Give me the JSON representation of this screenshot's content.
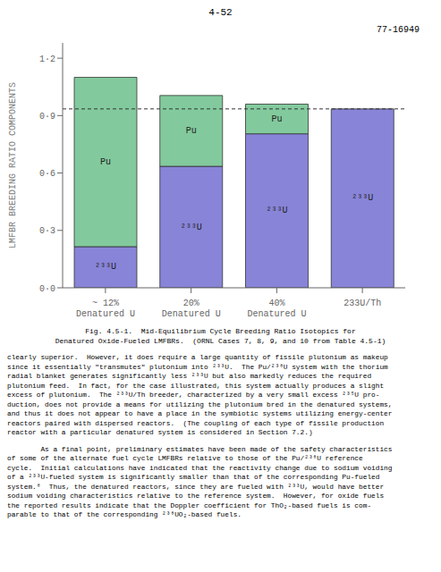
{
  "chart_data": {
    "type": "bar",
    "stacked": true,
    "grid": false,
    "title": "77-16949",
    "page_header": "4-52",
    "ylabel": "LMFBR BREEDING RATIO COMPONENTS",
    "categories": [
      "~ 12%\nDenatured U",
      "20%\nDenatured U",
      "40%\nDenatured U",
      "233U/Th"
    ],
    "series": [
      {
        "name": "²³³U",
        "color": "#8884d8",
        "values": [
          0.215,
          0.635,
          0.805,
          0.935
        ]
      },
      {
        "name": "Pu",
        "color": "#82ca9d",
        "values": [
          0.885,
          0.37,
          0.155,
          0.0
        ]
      }
    ],
    "hlines": [
      0.935
    ],
    "ylim": [
      0,
      1.28
    ],
    "yticks": [
      {
        "value": 0.0,
        "label": "0·0"
      },
      {
        "value": 0.3,
        "label": "0·3"
      },
      {
        "value": 0.6,
        "label": "0·6"
      },
      {
        "value": 0.9,
        "label": "0·9"
      },
      {
        "value": 1.2,
        "label": "1·2"
      }
    ],
    "caption": [
      "Fig. 4.5-1.  Mid-Equilibrium Cycle Breeding Ratio Isotopics for",
      "Denatured Oxide-Fueled LMFBRs.  (ORNL Cases 7, 8, 9, and 10 from Table 4.5-1)"
    ],
    "body_text": [
      [
        "clearly superior.  However, it does require a large quantity of fissile plutonium as makeup",
        "since it essentially \"transmutes\" plutonium into ²³³U.  The Pu/²³⁸U system with the thorium",
        "radial blanket generates significantly less ²³³U but also markedly reduces the required",
        "plutonium feed.  In fact, for the case illustrated, this system actually produces a slight",
        "excess of plutonium.  The ²³³U/Th breeder, characterized by a very small excess ²³⁵U pro-",
        "duction, does not provide a means for utilizing the plutonium bred in the denatured systems,",
        "and thus it does not appear to have a place in the symbiotic systems utilizing energy-center",
        "reactors paired with dispersed reactors.  (The coupling of each type of fissile production",
        "reactor with a particular denatured system is considered in Section 7.2.)"
      ],
      [
        "        As a final point, preliminary estimates have been made of the safety characteristics",
        "of some of the alternate fuel cycle LMFBRs relative to those of the Pu/²³⁸U reference",
        "cycle.  Initial calculations have indicated that the reactivity change due to sodium voiding",
        "of a ²³³U-fueled system is significantly smaller than that of the corresponding Pu-fueled",
        "system.⁸  Thus, the denatured reactors, since they are fueled with ²³³U, would have better",
        "sodium voiding characteristics relative to the reference system.  However, for oxide fuels",
        "the reported results indicate that the Doppler coefficient for ThO₂-based fuels is com-",
        "parable to that of the corresponding ²³⁸UO₂-based fuels."
      ]
    ]
  }
}
